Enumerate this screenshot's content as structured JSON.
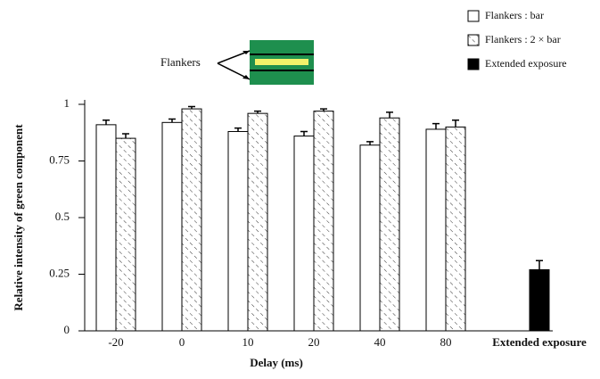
{
  "chart_data": {
    "type": "bar",
    "xlabel": "Delay (ms)",
    "ylabel": "Relative intensity of green component",
    "annotation": "Flankers",
    "categories": [
      "-20",
      "0",
      "10",
      "20",
      "40",
      "80",
      "Extended exposure"
    ],
    "series": [
      {
        "name": "Flankers : bar",
        "color": "#ffffff",
        "values": [
          0.91,
          0.92,
          0.88,
          0.86,
          0.82,
          0.89,
          null
        ],
        "errors": [
          0.02,
          0.015,
          0.015,
          0.02,
          0.015,
          0.025,
          null
        ]
      },
      {
        "name": "Flankers : 2 × bar",
        "color": "hatch",
        "values": [
          0.85,
          0.98,
          0.96,
          0.97,
          0.94,
          0.9,
          null
        ],
        "errors": [
          0.02,
          0.01,
          0.01,
          0.01,
          0.025,
          0.03,
          null
        ]
      },
      {
        "name": "Extended exposure",
        "color": "#000000",
        "values": [
          null,
          null,
          null,
          null,
          null,
          null,
          0.27
        ],
        "errors": [
          null,
          null,
          null,
          null,
          null,
          null,
          0.04
        ]
      }
    ],
    "ylim": [
      0,
      1
    ],
    "yticks": [
      0,
      0.25,
      0.5,
      0.75,
      1
    ]
  }
}
